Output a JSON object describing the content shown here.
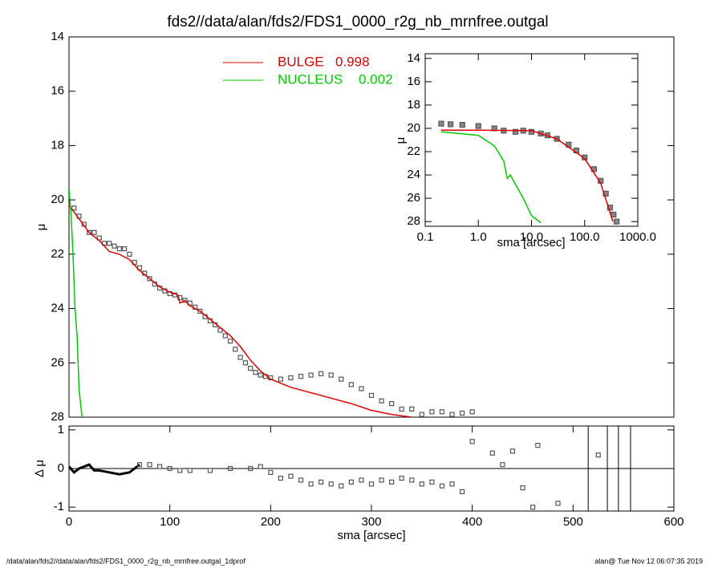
{
  "title": "fds2//data/alan/fds2/FDS1_0000_r2g_nb_mrnfree.outgal",
  "footer_left": "/data/alan/fds2//data/alan/fds2/FDS1_0000_r2g_nb_mrnfree.outgal_1dprof",
  "footer_right": "alan@  Tue Nov 12 06:07:35 2019",
  "chart_data": [
    {
      "type": "line",
      "ylabel": "μ",
      "xlim": [
        0,
        600
      ],
      "ylim": [
        28,
        14
      ],
      "yticks": [
        14,
        16,
        18,
        20,
        22,
        24,
        26,
        28
      ],
      "series": [
        {
          "mode": "markers",
          "color": "#555555",
          "x": [
            5,
            10,
            15,
            20,
            25,
            30,
            35,
            40,
            45,
            50,
            55,
            60,
            65,
            70,
            75,
            80,
            85,
            90,
            95,
            100,
            105,
            110,
            115,
            120,
            125,
            130,
            135,
            140,
            145,
            150,
            155,
            160,
            165,
            170,
            175,
            180,
            185,
            190,
            195,
            200,
            210,
            220,
            230,
            240,
            250,
            260,
            270,
            280,
            290,
            300,
            310,
            320,
            330,
            340,
            350,
            360,
            370,
            380,
            390,
            400
          ],
          "values": [
            20.3,
            20.6,
            20.9,
            21.2,
            21.2,
            21.4,
            21.6,
            21.6,
            21.7,
            21.8,
            21.8,
            22.0,
            22.3,
            22.5,
            22.7,
            22.9,
            23.1,
            23.25,
            23.35,
            23.45,
            23.5,
            23.6,
            23.7,
            23.8,
            23.95,
            24.1,
            24.3,
            24.45,
            24.6,
            24.8,
            25.0,
            25.2,
            25.5,
            25.8,
            26.0,
            26.2,
            26.35,
            26.45,
            26.5,
            26.55,
            26.6,
            26.55,
            26.5,
            26.45,
            26.4,
            26.45,
            26.6,
            26.8,
            26.95,
            27.2,
            27.4,
            27.5,
            27.7,
            27.7,
            27.9,
            27.8,
            27.8,
            27.9,
            27.85,
            27.8
          ]
        },
        {
          "mode": "lines",
          "color": "#e00000",
          "name": "BULGE",
          "fraction": 0.998,
          "x": [
            0,
            10,
            20,
            30,
            40,
            50,
            60,
            70,
            80,
            90,
            100,
            108,
            110,
            115,
            120,
            130,
            140,
            150,
            160,
            170,
            180,
            190,
            200,
            220,
            240,
            260,
            280,
            300,
            320,
            340
          ],
          "values": [
            20.2,
            20.7,
            21.2,
            21.5,
            21.9,
            22.0,
            22.2,
            22.6,
            22.9,
            23.2,
            23.4,
            23.5,
            23.8,
            23.7,
            23.9,
            24.1,
            24.4,
            24.7,
            25.0,
            25.4,
            25.9,
            26.3,
            26.6,
            26.9,
            27.1,
            27.3,
            27.5,
            27.75,
            27.9,
            28.0
          ]
        },
        {
          "mode": "lines",
          "color": "#00cc00",
          "name": "NUCLEUS",
          "fraction": 0.002,
          "x": [
            0,
            2,
            4,
            6,
            8,
            10,
            13
          ],
          "values": [
            19.6,
            20.5,
            22.0,
            24.0,
            25.0,
            27.0,
            28.0
          ]
        }
      ]
    },
    {
      "type": "line",
      "ylabel": "Δ μ",
      "xlabel": "sma [arcsec]",
      "xlim": [
        0,
        600
      ],
      "ylim": [
        -1.1,
        1.1
      ],
      "xticks": [
        0,
        100,
        200,
        300,
        400,
        500,
        600
      ],
      "yticks": [
        -1,
        0,
        1
      ],
      "hline": 0,
      "vlines": [
        515,
        534,
        545,
        557
      ],
      "series": [
        {
          "mode": "lines",
          "color": "#000000",
          "width": 3,
          "x": [
            0,
            5,
            10,
            15,
            20,
            25,
            30,
            40,
            50,
            60,
            70
          ],
          "values": [
            0.05,
            -0.1,
            0.0,
            0.05,
            0.1,
            -0.05,
            -0.05,
            -0.1,
            -0.15,
            -0.1,
            0.1
          ]
        },
        {
          "mode": "markers",
          "color": "#555555",
          "x": [
            70,
            80,
            90,
            100,
            110,
            120,
            140,
            160,
            180,
            190,
            200,
            210,
            220,
            230,
            240,
            250,
            260,
            270,
            280,
            290,
            300,
            310,
            320,
            330,
            340,
            350,
            360,
            370,
            380,
            390,
            400,
            420,
            430,
            440,
            450,
            460,
            465,
            485,
            525
          ],
          "values": [
            0.1,
            0.1,
            0.05,
            0,
            -0.05,
            -0.05,
            -0.05,
            0,
            0,
            0.05,
            -0.1,
            -0.25,
            -0.2,
            -0.3,
            -0.4,
            -0.35,
            -0.4,
            -0.45,
            -0.35,
            -0.3,
            -0.4,
            -0.3,
            -0.35,
            -0.25,
            -0.3,
            -0.4,
            -0.35,
            -0.45,
            -0.4,
            -0.6,
            0.7,
            0.4,
            0.1,
            0.45,
            -0.5,
            -1.0,
            0.6,
            -0.9,
            0.35
          ]
        }
      ]
    },
    {
      "type": "line",
      "xlog": true,
      "ylabel": "μ",
      "xlabel": "sma [arcsec]",
      "xlim": [
        0.1,
        1000
      ],
      "ylim": [
        28.4,
        13.6
      ],
      "xticks": [
        0.1,
        {
          "value": 1,
          "label": "1.0"
        },
        {
          "value": 10,
          "label": "10.0"
        },
        {
          "value": 100,
          "label": "100.0"
        },
        {
          "value": 1000,
          "label": "1000.0"
        }
      ],
      "yticks": [
        14,
        16,
        18,
        20,
        22,
        24,
        26,
        28
      ],
      "series": [
        {
          "mode": "markers",
          "color": "#555555",
          "x": [
            0.2,
            0.3,
            0.5,
            1,
            2,
            3,
            5,
            7,
            10,
            15,
            20,
            30,
            50,
            70,
            100,
            150,
            200,
            250,
            300,
            350,
            400
          ],
          "values": [
            19.6,
            19.65,
            19.7,
            19.8,
            20.0,
            20.2,
            20.3,
            20.2,
            20.3,
            20.45,
            20.6,
            20.9,
            21.4,
            21.9,
            22.5,
            23.5,
            24.5,
            25.6,
            26.8,
            27.4,
            28.0
          ]
        },
        {
          "mode": "lines",
          "color": "#e00000",
          "x": [
            0.2,
            1,
            10,
            30,
            100,
            200,
            340
          ],
          "values": [
            20.15,
            20.15,
            20.2,
            20.9,
            22.6,
            24.7,
            28.0
          ]
        },
        {
          "mode": "lines",
          "color": "#00cc00",
          "x": [
            0.2,
            1,
            2,
            3,
            3.5,
            4,
            5,
            7,
            10,
            15
          ],
          "values": [
            20.3,
            20.6,
            21.5,
            22.8,
            24.3,
            24.0,
            24.8,
            26.0,
            27.5,
            28.1
          ]
        }
      ]
    }
  ]
}
